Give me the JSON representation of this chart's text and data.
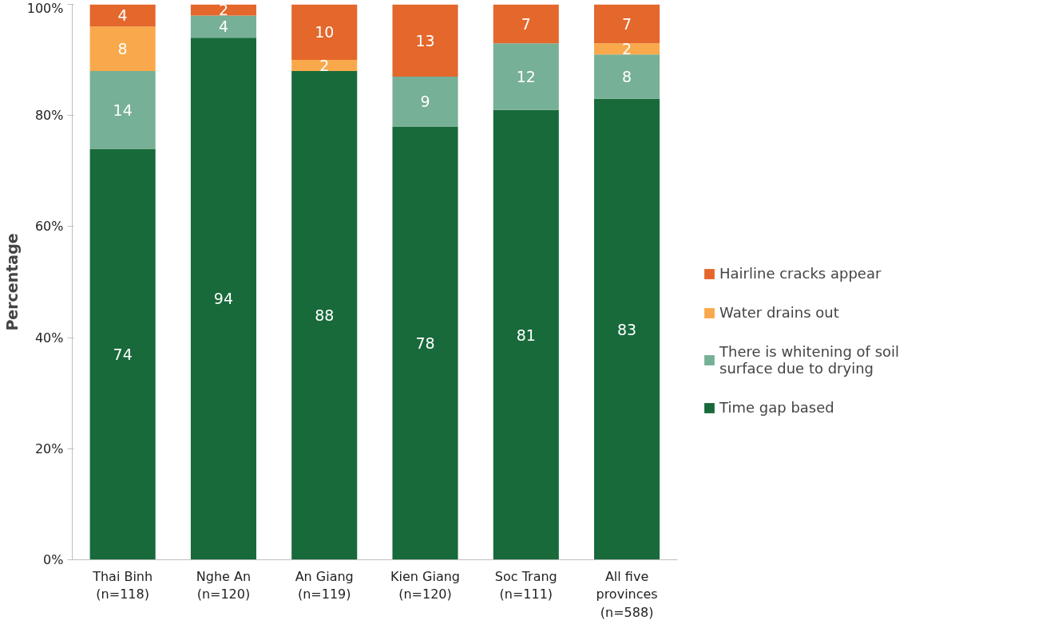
{
  "chart_data": {
    "type": "bar",
    "stacked": true,
    "ylabel": "Percentage",
    "categories": [
      "Thai Binh (n=118)",
      "Nghe An (n=120)",
      "An Giang (n=119)",
      "Kien Giang (n=120)",
      "Soc Trang (n=111)",
      "All five provinces (n=588)"
    ],
    "series": [
      {
        "name": "Time gap based",
        "color": "#186a3b",
        "values": [
          74,
          94,
          88,
          78,
          81,
          83
        ]
      },
      {
        "name": "There is whitening of soil surface due to drying",
        "color": "#76b096",
        "values": [
          14,
          4,
          null,
          9,
          12,
          8
        ]
      },
      {
        "name": "Water drains out",
        "color": "#f9a94b",
        "values": [
          8,
          null,
          2,
          null,
          null,
          2
        ]
      },
      {
        "name": "Hairline cracks appear",
        "color": "#e4672b",
        "values": [
          4,
          2,
          10,
          13,
          7,
          7
        ]
      }
    ],
    "ylim": [
      0,
      100
    ],
    "yticks": [
      {
        "value": 0,
        "label": "0%"
      },
      {
        "value": 20,
        "label": "20%"
      },
      {
        "value": 40,
        "label": "40%"
      },
      {
        "value": 60,
        "label": "60%"
      },
      {
        "value": 80,
        "label": "80%"
      },
      {
        "value": 100,
        "label": "100%"
      }
    ],
    "data_labels": true,
    "grid": false,
    "legend": "right"
  }
}
